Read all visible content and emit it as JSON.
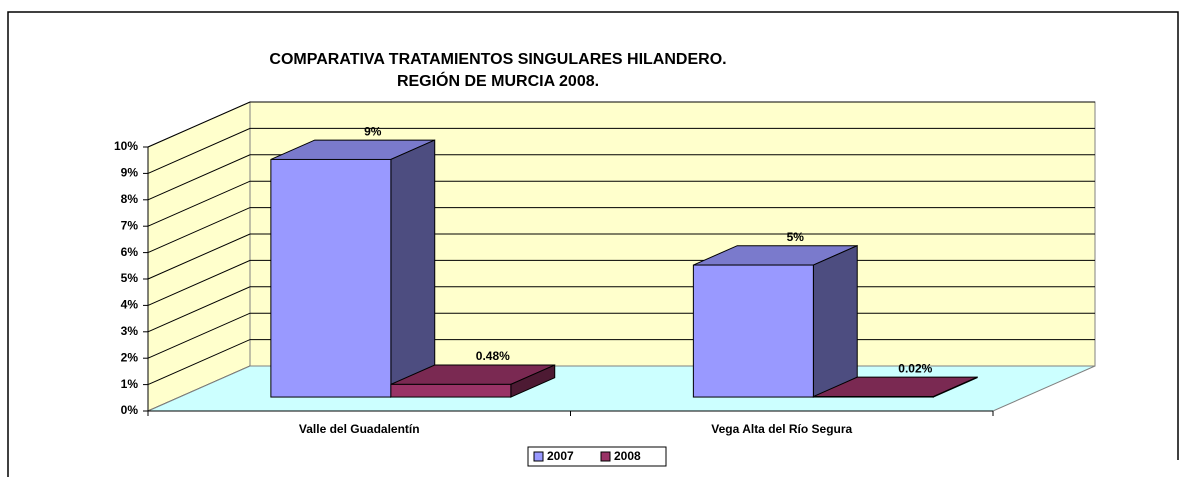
{
  "chart_data": {
    "type": "bar3d",
    "title": [
      "COMPARATIVA TRATAMIENTOS SINGULARES HILANDERO.",
      "REGIÓN DE MURCIA 2008."
    ],
    "categories": [
      "Valle del Guadalentín",
      "Vega Alta del Río Segura"
    ],
    "series": [
      {
        "name": "2007",
        "color": "#9999ff",
        "values": [
          9,
          5
        ],
        "value_labels": [
          "9%",
          "5%"
        ]
      },
      {
        "name": "2008",
        "color": "#993366",
        "values": [
          0.48,
          0.02
        ],
        "value_labels": [
          "0.48%",
          "0.02%"
        ]
      }
    ],
    "ylim": [
      0,
      10
    ],
    "yticks": [
      {
        "value": 0,
        "label": "0%"
      },
      {
        "value": 1,
        "label": "1%"
      },
      {
        "value": 2,
        "label": "2%"
      },
      {
        "value": 3,
        "label": "3%"
      },
      {
        "value": 4,
        "label": "4%"
      },
      {
        "value": 5,
        "label": "5%"
      },
      {
        "value": 6,
        "label": "6%"
      },
      {
        "value": 7,
        "label": "7%"
      },
      {
        "value": 8,
        "label": "8%"
      },
      {
        "value": 9,
        "label": "9%"
      },
      {
        "value": 10,
        "label": "10%"
      }
    ],
    "grid": true,
    "legend": "bottom"
  }
}
